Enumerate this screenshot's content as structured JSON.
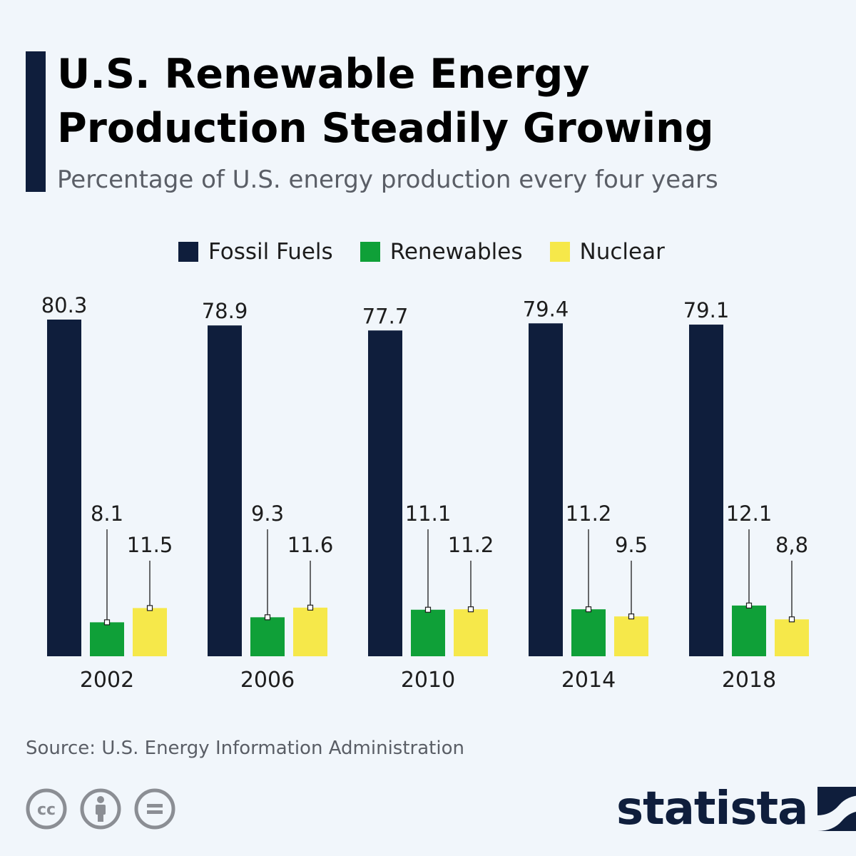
{
  "header": {
    "title": "U.S. Renewable Energy Production Steadily Growing",
    "subtitle": "Percentage of U.S. energy production every four years"
  },
  "colors": {
    "fossil": "#0f1e3c",
    "renewables": "#0fa038",
    "nuclear": "#f6e84a",
    "accent": "#0f1e3c"
  },
  "chart_data": {
    "type": "bar",
    "categories": [
      "2002",
      "2006",
      "2010",
      "2014",
      "2018"
    ],
    "series": [
      {
        "name": "Fossil Fuels",
        "values": [
          80.3,
          78.9,
          77.7,
          79.4,
          79.1
        ],
        "labels": [
          "80.3",
          "78.9",
          "77.7",
          "79.4",
          "79.1"
        ]
      },
      {
        "name": "Renewables",
        "values": [
          8.1,
          9.3,
          11.1,
          11.2,
          12.1
        ],
        "labels": [
          "8.1",
          "9.3",
          "11.1",
          "11.2",
          "12.1"
        ]
      },
      {
        "name": "Nuclear",
        "values": [
          11.5,
          11.6,
          11.2,
          9.5,
          8.8
        ],
        "labels": [
          "11.5",
          "11.6",
          "11.2",
          "9.5",
          "8,8"
        ]
      }
    ],
    "title": "U.S. Renewable Energy Production Steadily Growing",
    "subtitle": "Percentage of U.S. energy production every four years",
    "xlabel": "",
    "ylabel": "",
    "ylim": [
      0,
      80.3
    ],
    "grid": false,
    "legend": "top-center"
  },
  "footer": {
    "source": "Source: U.S. Energy Information Administration",
    "brand": "statista",
    "license_icons": [
      "cc-icon",
      "attribution-icon",
      "no-derivatives-icon"
    ]
  }
}
